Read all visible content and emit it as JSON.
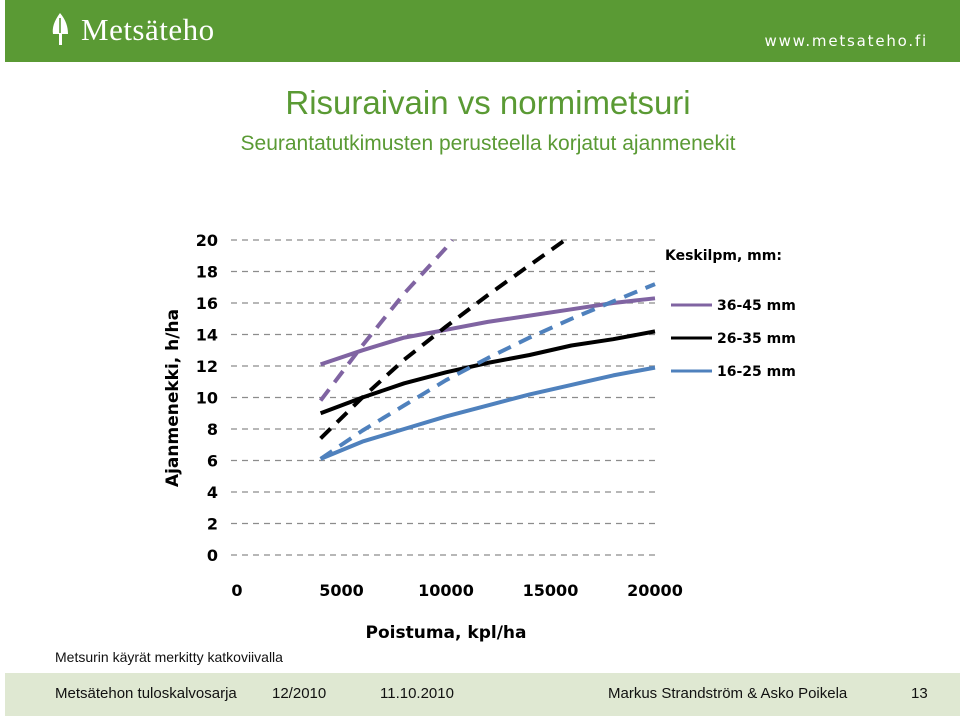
{
  "header": {
    "logo_text": "Metsäteho",
    "url": "www.metsateho.fi",
    "logo_icon": "tree-leaf-icon",
    "brand_color": "#5a9a34"
  },
  "slide": {
    "title": "Risuraivain vs  normimetsuri",
    "subtitle": "Seurantatutkimusten perusteella korjatut ajanmenekit",
    "note": "Metsurin käyrät merkitty katkoviivalla"
  },
  "footer": {
    "org": "Metsätehon tuloskalvosarja",
    "period": "12/2010",
    "date": "11.10.2010",
    "authors": "Markus Strandström & Asko Poikela",
    "page": "13"
  },
  "chart_data": {
    "type": "line",
    "xlabel": "Poistuma, kpl/ha",
    "ylabel": "Ajanmenekki, h/ha",
    "xlim": [
      0,
      20000
    ],
    "ylim": [
      0,
      20
    ],
    "x_ticks": [
      0,
      5000,
      10000,
      15000,
      20000
    ],
    "y_ticks": [
      0,
      2,
      4,
      6,
      8,
      10,
      12,
      14,
      16,
      18,
      20
    ],
    "grid": "horizontal dashed",
    "legend_title": "Keskilpm, mm:",
    "legend_position": "right",
    "series": [
      {
        "name": "36-45 mm",
        "color": "#8064a2",
        "style": "solid",
        "x": [
          4000,
          6000,
          8000,
          10000,
          12000,
          14000,
          16000,
          18000,
          20000
        ],
        "y": [
          12.1,
          13.0,
          13.8,
          14.3,
          14.8,
          15.2,
          15.6,
          16.0,
          16.3
        ]
      },
      {
        "name": "26-35 mm",
        "color": "#000000",
        "style": "solid",
        "x": [
          4000,
          6000,
          8000,
          10000,
          12000,
          14000,
          16000,
          18000,
          20000
        ],
        "y": [
          9.0,
          10.0,
          10.9,
          11.6,
          12.2,
          12.7,
          13.3,
          13.7,
          14.2
        ]
      },
      {
        "name": "16-25 mm",
        "color": "#4f81bd",
        "style": "solid",
        "x": [
          4000,
          6000,
          8000,
          10000,
          12000,
          14000,
          16000,
          18000,
          20000
        ],
        "y": [
          6.1,
          7.2,
          8.0,
          8.8,
          9.5,
          10.2,
          10.8,
          11.4,
          11.9
        ]
      },
      {
        "name": "",
        "color": "#8064a2",
        "style": "dashed",
        "x": [
          4000,
          6000,
          8000,
          10000,
          10300
        ],
        "y": [
          9.8,
          13.3,
          16.6,
          19.5,
          20.0
        ]
      },
      {
        "name": "",
        "color": "#000000",
        "style": "dashed",
        "x": [
          4000,
          6000,
          8000,
          10000,
          12000,
          14000,
          15700
        ],
        "y": [
          7.4,
          10.0,
          12.4,
          14.5,
          16.5,
          18.4,
          20.0
        ]
      },
      {
        "name": "",
        "color": "#4f81bd",
        "style": "dashed",
        "x": [
          4000,
          6000,
          8000,
          10000,
          12000,
          14000,
          16000,
          18000,
          20000
        ],
        "y": [
          6.1,
          7.9,
          9.5,
          11.1,
          12.5,
          13.8,
          15.0,
          16.1,
          17.2
        ]
      }
    ]
  }
}
